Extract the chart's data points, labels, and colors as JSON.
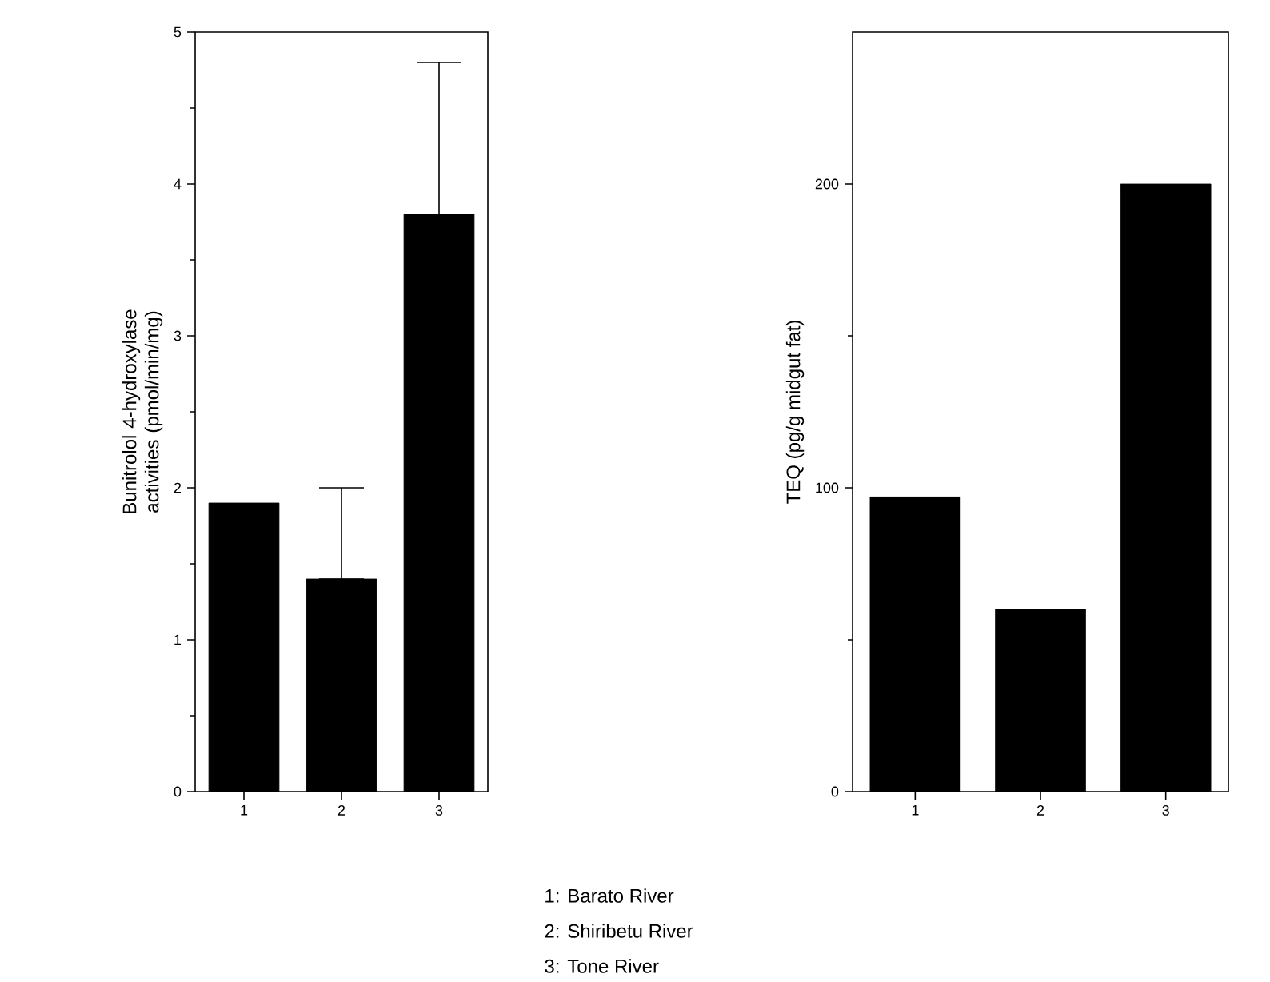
{
  "chart_data": [
    {
      "type": "bar",
      "ylabel": "Bunitrolol 4-hydroxylase activities (pmol/min/mg)",
      "categories": [
        "1",
        "2",
        "3"
      ],
      "values": [
        1.9,
        1.4,
        3.8
      ],
      "errors": [
        null,
        [
          1.4,
          2.0
        ],
        [
          3.8,
          4.8
        ]
      ],
      "color": "#000000",
      "ylim": [
        0,
        5
      ],
      "yticks": [
        0,
        1,
        2,
        3,
        4,
        5
      ],
      "annotations": [
        "1: Barato River",
        "2: Shiribetu River",
        "3: Tone River"
      ]
    },
    {
      "type": "bar",
      "ylabel": "TEQ (pg/g midgut fat)",
      "categories": [
        "1",
        "2",
        "3"
      ],
      "values": [
        97,
        60,
        200
      ],
      "color": "#000000",
      "ylim": [
        0,
        250
      ],
      "yticks": [
        0,
        100,
        200
      ]
    }
  ]
}
